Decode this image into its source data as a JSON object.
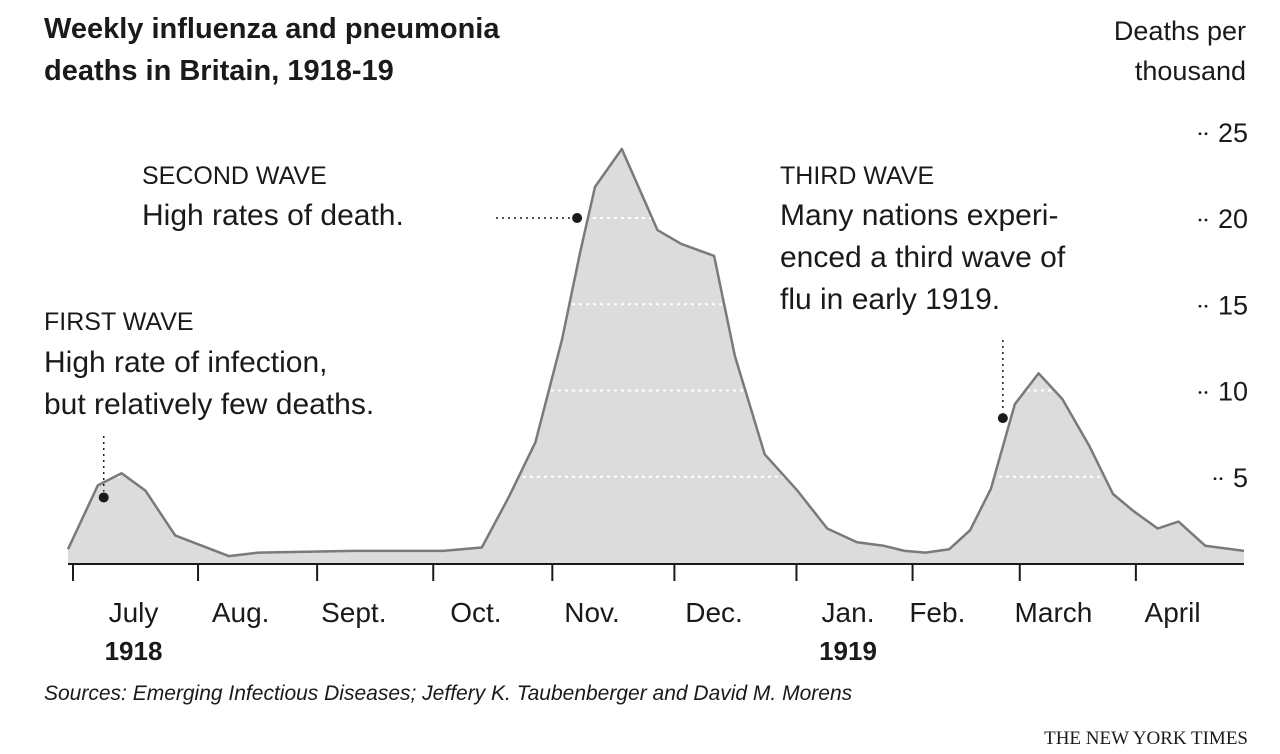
{
  "title_line1": "Weekly influenza and pneumonia",
  "title_line2": "deaths in Britain, 1918-19",
  "unit_line1": "Deaths per",
  "unit_line2": "thousand",
  "source": "Sources: Emerging Infectious Diseases; Jeffery K. Taubenberger and David M. Morens",
  "credit": "THE NEW YORK TIMES",
  "colors": {
    "area_fill": "#dcdcdc",
    "line": "#7a7a7a",
    "ink": "#1a1a1a"
  },
  "annotations": [
    {
      "id": "first",
      "head": "FIRST WAVE",
      "body": [
        "High rate of infection,",
        "but relatively few deaths."
      ],
      "x": 1.2,
      "y": 3.8
    },
    {
      "id": "second",
      "head": "SECOND WAVE",
      "body": [
        "High rates of death."
      ],
      "x": 17.1,
      "y": 20
    },
    {
      "id": "third",
      "head": "THIRD WAVE",
      "body": [
        "Many nations experi-",
        "enced a third wave of",
        "flu in early 1919."
      ],
      "x": 31.4,
      "y": 8.4
    }
  ],
  "chart_data": {
    "type": "area",
    "title": "Weekly influenza and pneumonia deaths in Britain, 1918-19",
    "ylabel": "Deaths per thousand",
    "ylim": [
      0,
      25
    ],
    "xlim": [
      0,
      39.5
    ],
    "y_ticks": [
      "5",
      "10",
      "15",
      "20",
      "25"
    ],
    "y_tick_values": [
      5,
      10,
      15,
      20,
      25
    ],
    "month_labels": [
      "July",
      "Aug.",
      "Sept.",
      "Oct.",
      "Nov.",
      "Dec.",
      "Jan.",
      "Feb.",
      "March",
      "April"
    ],
    "month_label_positions": [
      2.2,
      5.8,
      9.6,
      13.7,
      17.6,
      21.7,
      26.2,
      29.2,
      33.1,
      37.1
    ],
    "month_boundaries": [
      0,
      4.2,
      8.2,
      12.1,
      16.1,
      20.2,
      24.3,
      28.2,
      31.8,
      35.7
    ],
    "year_labels": [
      {
        "text": "1918",
        "at": 2.2
      },
      {
        "text": "1919",
        "at": 26.2
      }
    ],
    "x": [
      0,
      1,
      1.8,
      2.6,
      3.6,
      5.4,
      6.4,
      9.6,
      12.6,
      13.9,
      14.8,
      15.7,
      16.6,
      17.2,
      17.7,
      18.6,
      19.8,
      20.6,
      21.7,
      22.4,
      23.4,
      24.5,
      25.5,
      26.5,
      27.4,
      28.1,
      28.8,
      29.6,
      30.3,
      31.0,
      31.8,
      32.6,
      33.4,
      34.3,
      35.1,
      35.8,
      36.6,
      37.3,
      38.2,
      39.5
    ],
    "y": [
      0.8,
      4.5,
      5.2,
      4.2,
      1.6,
      0.4,
      0.6,
      0.7,
      0.7,
      0.9,
      3.8,
      7.0,
      13.0,
      18.0,
      21.8,
      24.0,
      19.3,
      18.5,
      17.8,
      12.0,
      6.3,
      4.2,
      2.0,
      1.2,
      1.0,
      0.7,
      0.6,
      0.8,
      1.9,
      4.3,
      9.2,
      11.0,
      9.5,
      6.8,
      4.0,
      3.0,
      2.0,
      2.4,
      1.0,
      0.7
    ],
    "grid": "dashed white horizontal lines inside area"
  }
}
